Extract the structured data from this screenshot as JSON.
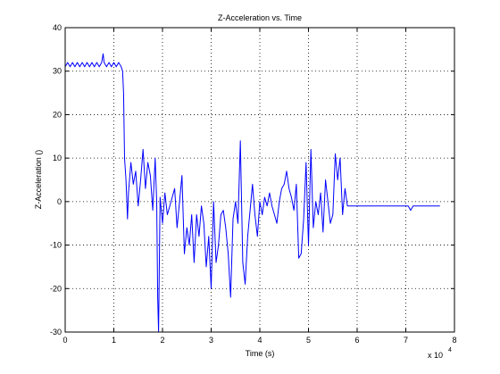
{
  "chart_data": {
    "type": "line",
    "title": "Z-Acceleration vs. Time",
    "xlabel": "Time (s)",
    "ylabel": "Z-Acceleration ()",
    "x_multiplier_label": "x 10",
    "x_multiplier_exponent": "4",
    "xlim": [
      0,
      8
    ],
    "ylim": [
      -30,
      40
    ],
    "xticks": [
      "0",
      "1",
      "2",
      "3",
      "4",
      "5",
      "6",
      "7",
      "8"
    ],
    "yticks": [
      "-30",
      "-20",
      "-10",
      "0",
      "10",
      "20",
      "30",
      "40"
    ],
    "grid": true,
    "line_color": "#0000ff",
    "series": [
      {
        "x": [
          0,
          0.05,
          0.1,
          0.15,
          0.2,
          0.25,
          0.3,
          0.35,
          0.4,
          0.45,
          0.5,
          0.55,
          0.6,
          0.65,
          0.7,
          0.75,
          0.78,
          0.8,
          0.85,
          0.9,
          0.95,
          1.0,
          1.05,
          1.1,
          1.15,
          1.18,
          1.2,
          1.22,
          1.25,
          1.28,
          1.3,
          1.35,
          1.4,
          1.45,
          1.5,
          1.55,
          1.6,
          1.65,
          1.7,
          1.75,
          1.8,
          1.85,
          1.88,
          1.9,
          1.92,
          1.95,
          2.0,
          2.05,
          2.1,
          2.15,
          2.2,
          2.25,
          2.3,
          2.35,
          2.4,
          2.45,
          2.5,
          2.55,
          2.6,
          2.65,
          2.7,
          2.75,
          2.8,
          2.85,
          2.9,
          2.95,
          3.0,
          3.05,
          3.1,
          3.15,
          3.2,
          3.25,
          3.3,
          3.35,
          3.4,
          3.45,
          3.5,
          3.55,
          3.6,
          3.65,
          3.7,
          3.75,
          3.8,
          3.85,
          3.9,
          3.95,
          4.0,
          4.05,
          4.1,
          4.15,
          4.2,
          4.25,
          4.3,
          4.35,
          4.4,
          4.45,
          4.5,
          4.55,
          4.6,
          4.65,
          4.7,
          4.75,
          4.8,
          4.85,
          4.9,
          4.95,
          5.0,
          5.05,
          5.1,
          5.15,
          5.2,
          5.25,
          5.3,
          5.35,
          5.4,
          5.45,
          5.5,
          5.55,
          5.6,
          5.65,
          5.7,
          5.75,
          5.8,
          5.9,
          6.0,
          6.2,
          6.5,
          6.8,
          7.0,
          7.05,
          7.1,
          7.15,
          7.2,
          7.5,
          7.7
        ],
        "y": [
          31,
          32,
          31,
          32,
          31,
          32,
          31,
          32,
          31,
          32,
          31,
          32,
          31,
          32,
          31,
          32,
          34,
          32,
          31,
          32,
          31,
          32,
          31,
          32,
          31,
          30,
          25,
          10,
          5,
          -4,
          2,
          9,
          4,
          7,
          -1,
          5,
          12,
          3,
          9,
          6,
          -2,
          10,
          0,
          -22,
          -30,
          1,
          -5,
          2,
          -3,
          -1,
          1,
          3,
          -6,
          0,
          6,
          -12,
          -6,
          -10,
          -3,
          -14,
          -3,
          -8,
          -1,
          -5,
          -15,
          -8,
          -20,
          0,
          -14,
          -10,
          -3,
          -2,
          -6,
          -12,
          -22,
          -4,
          0,
          -5,
          14,
          -14,
          -19,
          -8,
          -2,
          4,
          -3,
          -8,
          0,
          -3,
          1,
          -1,
          2,
          -1,
          -3,
          -5,
          0,
          3,
          4,
          7,
          3,
          1,
          -2,
          4,
          -13,
          -12,
          -4,
          9,
          -10,
          12,
          -6,
          0,
          -3,
          2,
          -7,
          5,
          0,
          -5,
          -3,
          11,
          5,
          10,
          -3,
          3,
          -1,
          -1,
          -1,
          -1,
          -1,
          -1,
          -1,
          -1,
          -2,
          -1,
          -1,
          -1,
          -1
        ]
      }
    ]
  }
}
